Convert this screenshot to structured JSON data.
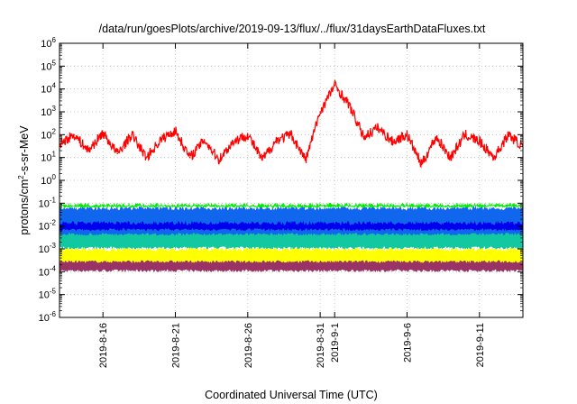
{
  "chart_data": {
    "type": "line",
    "title": "/data/run/goesPlots/archive/2019-09-13/flux/../flux/31daysEarthDataFluxes.txt",
    "xlabel": "Coordinated Universal Time (UTC)",
    "ylabel": {
      "prefix": "protons/cm",
      "sup": "2",
      "suffix": "-s-sr-MeV"
    },
    "yscale": "log",
    "ylim_exp": [
      -6,
      6
    ],
    "y_ticks": [
      {
        "base": "10",
        "exp": "-6"
      },
      {
        "base": "10",
        "exp": "-5"
      },
      {
        "base": "10",
        "exp": "-4"
      },
      {
        "base": "10",
        "exp": "-3"
      },
      {
        "base": "10",
        "exp": "-2"
      },
      {
        "base": "10",
        "exp": "-1"
      },
      {
        "base": "10",
        "exp": "0"
      },
      {
        "base": "10",
        "exp": "1"
      },
      {
        "base": "10",
        "exp": "2"
      },
      {
        "base": "10",
        "exp": "3"
      },
      {
        "base": "10",
        "exp": "4"
      },
      {
        "base": "10",
        "exp": "5"
      },
      {
        "base": "10",
        "exp": "6"
      }
    ],
    "x_range": [
      "2019-08-13",
      "2019-09-14"
    ],
    "x_ticks": [
      {
        "date": "2019-08-16",
        "label": "2019-8-16"
      },
      {
        "date": "2019-08-21",
        "label": "2019-8-21"
      },
      {
        "date": "2019-08-26",
        "label": "2019-8-26"
      },
      {
        "date": "2019-08-31",
        "label": "2019-8-31"
      },
      {
        "date": "2019-09-01",
        "label": "2019-9-1"
      },
      {
        "date": "2019-09-06",
        "label": "2019-9-6"
      },
      {
        "date": "2019-09-11",
        "label": "2019-9-11"
      }
    ],
    "grid": true,
    "series": [
      {
        "color": "#993366",
        "style": "band",
        "log_min": -4.0,
        "log_max": -3.35
      },
      {
        "color": "#ffff00",
        "style": "band",
        "log_min": -3.6,
        "log_max": -2.95
      },
      {
        "color": "#11c8a0",
        "style": "band",
        "log_min": -3.0,
        "log_max": -1.9
      },
      {
        "color": "#1166ee",
        "style": "band",
        "log_min": -2.4,
        "log_max": -1.15
      },
      {
        "color": "#0000ee",
        "style": "band",
        "log_min": -2.2,
        "log_max": -1.8
      },
      {
        "color": "#00ee00",
        "style": "band",
        "log_min": -1.2,
        "log_max": -1.0
      },
      {
        "color": "#ff0000",
        "style": "line",
        "x": [
          "2019-08-13",
          "2019-08-14",
          "2019-08-15",
          "2019-08-16",
          "2019-08-17",
          "2019-08-18",
          "2019-08-19",
          "2019-08-20",
          "2019-08-21",
          "2019-08-22",
          "2019-08-23",
          "2019-08-24",
          "2019-08-25",
          "2019-08-26",
          "2019-08-27",
          "2019-08-28",
          "2019-08-29",
          "2019-08-30",
          "2019-08-31",
          "2019-09-01",
          "2019-09-02",
          "2019-09-03",
          "2019-09-04",
          "2019-09-05",
          "2019-09-06",
          "2019-09-07",
          "2019-09-08",
          "2019-09-09",
          "2019-09-10",
          "2019-09-11",
          "2019-09-12",
          "2019-09-13",
          "2019-09-14"
        ],
        "y": [
          40,
          100,
          20,
          120,
          15,
          100,
          10,
          60,
          150,
          10,
          60,
          8,
          50,
          100,
          8,
          60,
          100,
          8,
          1000,
          15000,
          2000,
          80,
          200,
          50,
          100,
          5,
          80,
          10,
          100,
          50,
          10,
          100,
          30
        ]
      }
    ]
  }
}
